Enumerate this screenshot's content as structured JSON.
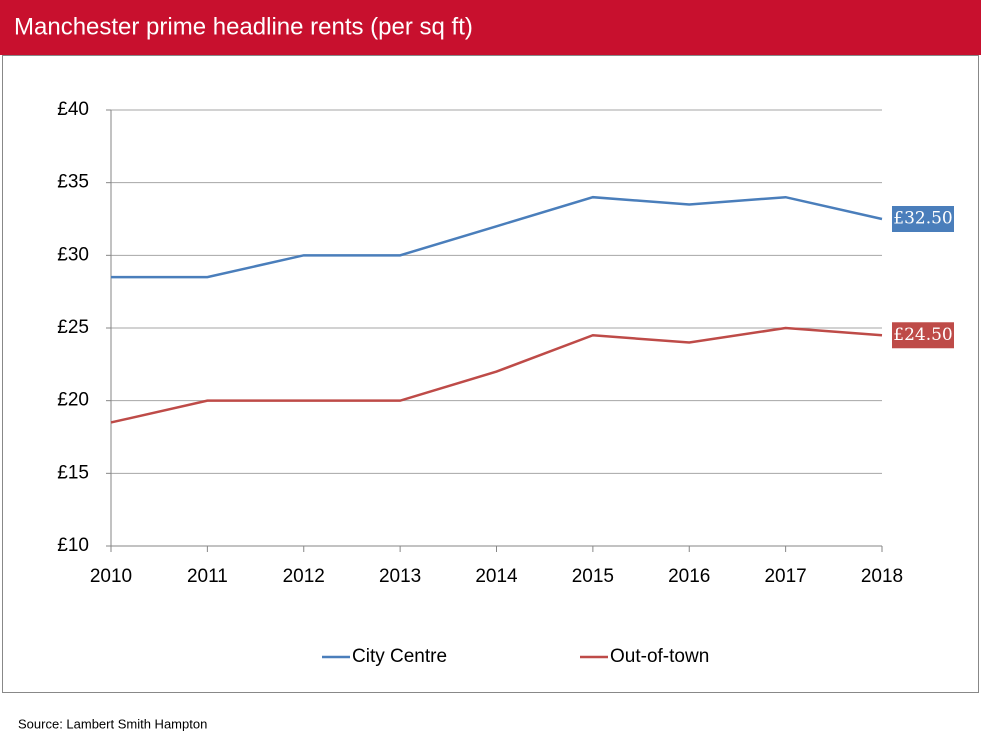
{
  "chart_data": {
    "type": "line",
    "title": "Manchester prime headline rents (per sq ft)",
    "source": "Source: Lambert Smith Hampton",
    "categories": [
      "2010",
      "2011",
      "2012",
      "2013",
      "2014",
      "2015",
      "2016",
      "2017",
      "2018"
    ],
    "series": [
      {
        "name": "City Centre",
        "color": "#4a7ebb",
        "values": [
          28.5,
          28.5,
          30,
          30,
          32,
          34,
          33.5,
          34,
          32.5
        ],
        "value_labels": [
          null,
          null,
          null,
          null,
          null,
          null,
          null,
          null,
          "£32.50"
        ]
      },
      {
        "name": "Out-of-town",
        "color": "#be4b48",
        "values": [
          18.5,
          20,
          20,
          20,
          22,
          24.5,
          24,
          25,
          24.5
        ],
        "value_labels": [
          null,
          null,
          null,
          null,
          null,
          null,
          null,
          null,
          "£24.50"
        ]
      }
    ],
    "ylim": [
      10,
      40
    ],
    "yticks": [
      {
        "value": 10,
        "label": "£10"
      },
      {
        "value": 15,
        "label": "£15"
      },
      {
        "value": 20,
        "label": "£20"
      },
      {
        "value": 25,
        "label": "£25"
      },
      {
        "value": 30,
        "label": "£30"
      },
      {
        "value": 35,
        "label": "£35"
      },
      {
        "value": 40,
        "label": "£40"
      }
    ],
    "grid": true,
    "legend": "bottom",
    "header_color": "#c8102e"
  }
}
